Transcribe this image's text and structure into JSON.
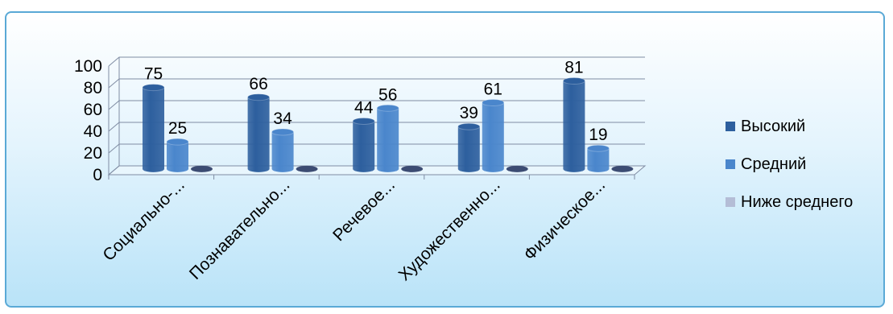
{
  "chart_data": {
    "type": "bar",
    "style": "3d-cylinder-clustered",
    "categories": [
      "Социально-...",
      "Познавательно...",
      "Речевое...",
      "Художественно...",
      "Физическое..."
    ],
    "series": [
      {
        "name": "Высокий",
        "values": [
          75,
          66,
          44,
          39,
          81
        ],
        "labels": [
          "75",
          "66",
          "44",
          "39",
          "81"
        ],
        "color": "#2d5f9e"
      },
      {
        "name": "Средний",
        "values": [
          25,
          34,
          56,
          61,
          19
        ],
        "labels": [
          "25",
          "34",
          "56",
          "61",
          "19"
        ],
        "color": "#4a86cc"
      },
      {
        "name": "Ниже среднего",
        "values": [
          0,
          0,
          0,
          0,
          0
        ],
        "labels": [
          "",
          "",
          "",
          "",
          ""
        ],
        "color": "#b4bdd6"
      }
    ],
    "y_ticks": [
      "0",
      "20",
      "40",
      "60",
      "80",
      "100"
    ],
    "ylim": [
      0,
      100
    ],
    "grid": true,
    "legend_position": "right"
  },
  "colors": {
    "frame_border": "#5aa9d6",
    "background_top": "#ffffff",
    "background_bottom": "#b9e3f8"
  }
}
